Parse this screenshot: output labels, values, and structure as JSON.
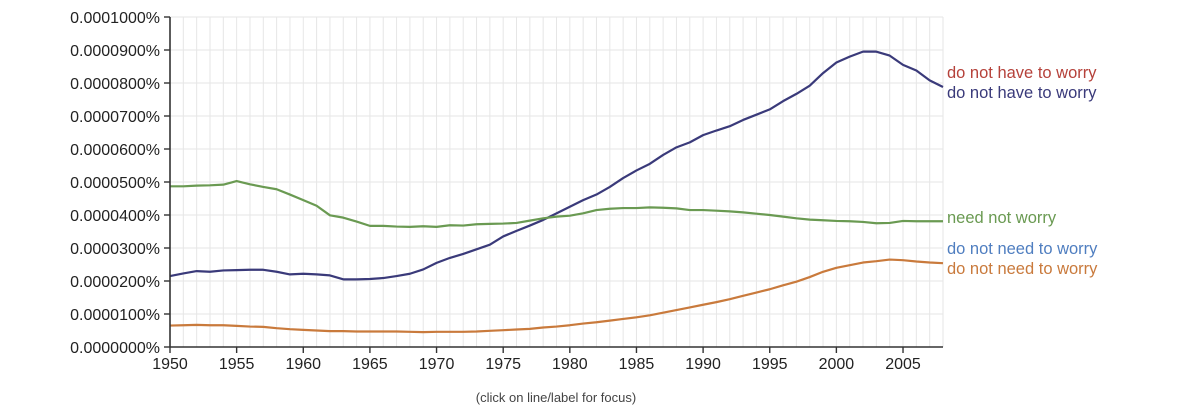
{
  "chart_data": {
    "type": "line",
    "xlim": [
      1950,
      2008
    ],
    "ylim": [
      0,
      0.0001
    ],
    "x_ticks": [
      1950,
      1955,
      1960,
      1965,
      1970,
      1975,
      1980,
      1985,
      1990,
      1995,
      2000,
      2005
    ],
    "y_ticks": [
      "0.0000000%",
      "0.0000100%",
      "0.0000200%",
      "0.0000300%",
      "0.0000400%",
      "0.0000500%",
      "0.0000600%",
      "0.0000700%",
      "0.0000800%",
      "0.0000900%",
      "0.0001000%"
    ],
    "y_tick_values": [
      0,
      1e-05,
      2e-05,
      3e-05,
      4e-05,
      5e-05,
      6e-05,
      7e-05,
      8e-05,
      9e-05,
      0.0001
    ],
    "grid": true,
    "legend": "right",
    "series": [
      {
        "name": "do not have to worry",
        "color": "#3a3a7a",
        "x": [
          1950,
          1951,
          1952,
          1953,
          1954,
          1955,
          1956,
          1957,
          1958,
          1959,
          1960,
          1961,
          1962,
          1963,
          1964,
          1965,
          1966,
          1967,
          1968,
          1969,
          1970,
          1971,
          1972,
          1973,
          1974,
          1975,
          1976,
          1977,
          1978,
          1979,
          1980,
          1981,
          1982,
          1983,
          1984,
          1985,
          1986,
          1987,
          1988,
          1989,
          1990,
          1991,
          1992,
          1993,
          1994,
          1995,
          1996,
          1997,
          1998,
          1999,
          2000,
          2001,
          2002,
          2003,
          2004,
          2005,
          2006,
          2007,
          2008
        ],
        "values": [
          2.15e-05,
          2.23e-05,
          2.3e-05,
          2.28e-05,
          2.32e-05,
          2.33e-05,
          2.34e-05,
          2.34e-05,
          2.28e-05,
          2.2e-05,
          2.22e-05,
          2.2e-05,
          2.17e-05,
          2.05e-05,
          2.05e-05,
          2.06e-05,
          2.09e-05,
          2.15e-05,
          2.22e-05,
          2.35e-05,
          2.55e-05,
          2.7e-05,
          2.82e-05,
          2.96e-05,
          3.1e-05,
          3.35e-05,
          3.52e-05,
          3.68e-05,
          3.85e-05,
          4.05e-05,
          4.25e-05,
          4.45e-05,
          4.62e-05,
          4.85e-05,
          5.12e-05,
          5.35e-05,
          5.55e-05,
          5.82e-05,
          6.05e-05,
          6.2e-05,
          6.42e-05,
          6.56e-05,
          6.69e-05,
          6.88e-05,
          7.04e-05,
          7.2e-05,
          7.45e-05,
          7.67e-05,
          7.92e-05,
          8.3e-05,
          8.62e-05,
          8.8e-05,
          8.95e-05,
          8.95e-05,
          8.83e-05,
          8.55e-05,
          8.38e-05,
          8.08e-05,
          7.88e-05
        ]
      },
      {
        "name": "need not worry",
        "color": "#6a9a52",
        "x": [
          1950,
          1951,
          1952,
          1953,
          1954,
          1955,
          1956,
          1957,
          1958,
          1959,
          1960,
          1961,
          1962,
          1963,
          1964,
          1965,
          1966,
          1967,
          1968,
          1969,
          1970,
          1971,
          1972,
          1973,
          1974,
          1975,
          1976,
          1977,
          1978,
          1979,
          1980,
          1981,
          1982,
          1983,
          1984,
          1985,
          1986,
          1987,
          1988,
          1989,
          1990,
          1991,
          1992,
          1993,
          1994,
          1995,
          1996,
          1997,
          1998,
          1999,
          2000,
          2001,
          2002,
          2003,
          2004,
          2005,
          2006,
          2007,
          2008
        ],
        "values": [
          4.87e-05,
          4.87e-05,
          4.89e-05,
          4.9e-05,
          4.92e-05,
          5.03e-05,
          4.93e-05,
          4.85e-05,
          4.78e-05,
          4.62e-05,
          4.45e-05,
          4.28e-05,
          3.99e-05,
          3.92e-05,
          3.8e-05,
          3.67e-05,
          3.67e-05,
          3.65e-05,
          3.64e-05,
          3.66e-05,
          3.64e-05,
          3.69e-05,
          3.68e-05,
          3.72e-05,
          3.73e-05,
          3.74e-05,
          3.76e-05,
          3.83e-05,
          3.9e-05,
          3.95e-05,
          3.98e-05,
          4.05e-05,
          4.15e-05,
          4.19e-05,
          4.21e-05,
          4.21e-05,
          4.23e-05,
          4.22e-05,
          4.2e-05,
          4.15e-05,
          4.15e-05,
          4.13e-05,
          4.11e-05,
          4.08e-05,
          4.04e-05,
          4e-05,
          3.95e-05,
          3.9e-05,
          3.86e-05,
          3.84e-05,
          3.82e-05,
          3.81e-05,
          3.79e-05,
          3.75e-05,
          3.76e-05,
          3.82e-05,
          3.81e-05,
          3.81e-05,
          3.81e-05
        ]
      },
      {
        "name": "do not need to worry",
        "color": "#c97a3c",
        "x": [
          1950,
          1951,
          1952,
          1953,
          1954,
          1955,
          1956,
          1957,
          1958,
          1959,
          1960,
          1961,
          1962,
          1963,
          1964,
          1965,
          1966,
          1967,
          1968,
          1969,
          1970,
          1971,
          1972,
          1973,
          1974,
          1975,
          1976,
          1977,
          1978,
          1979,
          1980,
          1981,
          1982,
          1983,
          1984,
          1985,
          1986,
          1987,
          1988,
          1989,
          1990,
          1991,
          1992,
          1993,
          1994,
          1995,
          1996,
          1997,
          1998,
          1999,
          2000,
          2001,
          2002,
          2003,
          2004,
          2005,
          2006,
          2007,
          2008
        ],
        "values": [
          6.5e-06,
          6.6e-06,
          6.7e-06,
          6.6e-06,
          6.6e-06,
          6.4e-06,
          6.2e-06,
          6.1e-06,
          5.7e-06,
          5.4e-06,
          5.2e-06,
          5e-06,
          4.8e-06,
          4.8e-06,
          4.7e-06,
          4.7e-06,
          4.7e-06,
          4.7e-06,
          4.6e-06,
          4.5e-06,
          4.6e-06,
          4.6e-06,
          4.6e-06,
          4.7e-06,
          4.9e-06,
          5.1e-06,
          5.3e-06,
          5.5e-06,
          5.9e-06,
          6.2e-06,
          6.6e-06,
          7.1e-06,
          7.5e-06,
          8e-06,
          8.5e-06,
          9e-06,
          9.6e-06,
          1.04e-05,
          1.12e-05,
          1.2e-05,
          1.28e-05,
          1.36e-05,
          1.45e-05,
          1.55e-05,
          1.65e-05,
          1.75e-05,
          1.87e-05,
          1.98e-05,
          2.12e-05,
          2.28e-05,
          2.4e-05,
          2.48e-05,
          2.56e-05,
          2.6e-05,
          2.65e-05,
          2.63e-05,
          2.59e-05,
          2.56e-05,
          2.54e-05
        ]
      }
    ],
    "labels": [
      {
        "text": "do not have to worry",
        "color": "#b5413a"
      },
      {
        "text": "do not have to worry",
        "color": "#3a3a7a"
      },
      {
        "text": "need not worry",
        "color": "#6a9a52"
      },
      {
        "text": "do not need to worry",
        "color": "#4f7ec0"
      },
      {
        "text": "do not need to worry",
        "color": "#c97a3c"
      }
    ],
    "footnote": "(click on line/label for focus)"
  }
}
